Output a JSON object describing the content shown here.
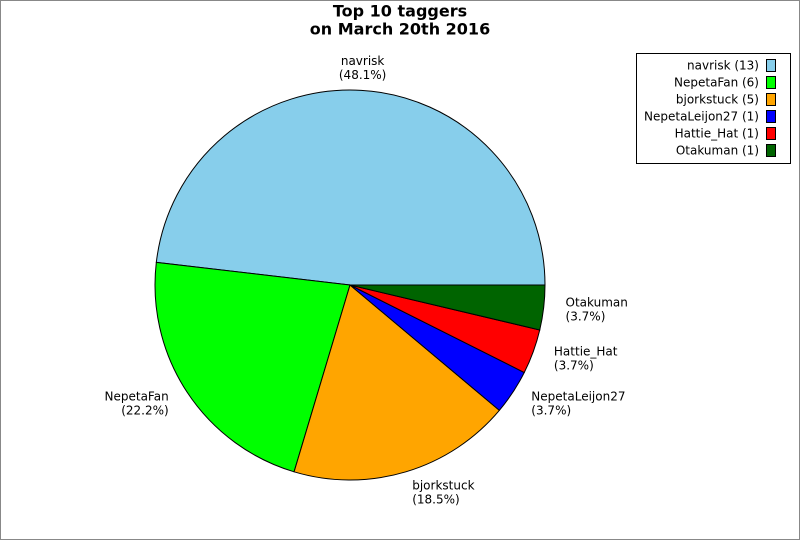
{
  "chart_data": {
    "type": "pie",
    "title": "Top 10 taggers",
    "subtitle": "on March 20th 2016",
    "categories": [
      "navrisk",
      "NepetaFan",
      "bjorkstuck",
      "NepetaLeijon27",
      "Hattie_Hat",
      "Otakuman"
    ],
    "values": [
      13,
      6,
      5,
      1,
      1,
      1
    ],
    "percents": [
      48.1,
      22.2,
      18.5,
      3.7,
      3.7,
      3.7
    ],
    "percent_labels": [
      "(48.1%)",
      "(22.2%)",
      "(18.5%)",
      "(3.7%)",
      "(3.7%)",
      "(3.7%)"
    ],
    "legend_labels": [
      "navrisk (13)",
      "NepetaFan (6)",
      "bjorkstuck (5)",
      "NepetaLeijon27 (1)",
      "Hattie_Hat (1)",
      "Otakuman (1)"
    ],
    "colors": [
      "#87ceeb",
      "#00ff00",
      "#ffa500",
      "#0000ff",
      "#ff0000",
      "#006400"
    ],
    "legend": "top-right"
  }
}
